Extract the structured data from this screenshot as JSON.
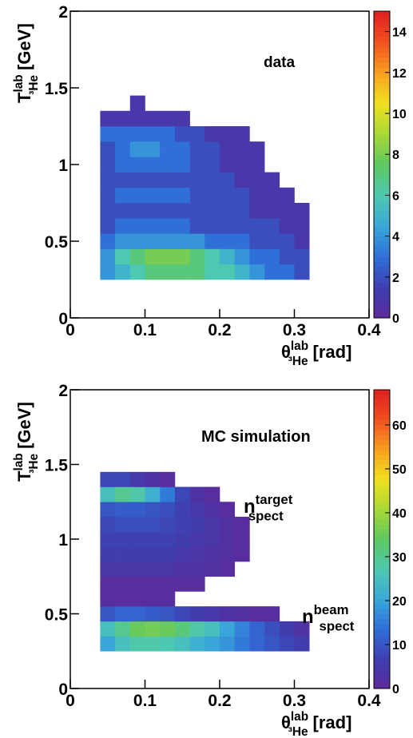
{
  "chart_data": [
    {
      "type": "heatmap",
      "title": "data",
      "xlabel": {
        "main": "θ",
        "sup": "lab",
        "sub": "³He",
        "unit": "[rad]"
      },
      "ylabel": {
        "main": "T",
        "sup": "lab",
        "sub": "³He",
        "unit": "[GeV]"
      },
      "xlim": [
        0,
        0.4
      ],
      "ylim": [
        0,
        2
      ],
      "xticks": [
        0,
        0.1,
        0.2,
        0.3,
        0.4
      ],
      "yticks": [
        0,
        0.5,
        1,
        1.5,
        2
      ],
      "zlim": [
        0,
        15
      ],
      "zticks": [
        0,
        2,
        4,
        6,
        8,
        10,
        12,
        14
      ],
      "palette": [
        "#5c2a9a",
        "#3f3fb0",
        "#2f6fd8",
        "#3aa8d8",
        "#4ec8b0",
        "#5ec860",
        "#a8d838",
        "#f0e020",
        "#f8a020",
        "#f05020",
        "#e02020"
      ],
      "xbins": [
        0.04,
        0.06,
        0.08,
        0.1,
        0.12,
        0.14,
        0.16,
        0.18,
        0.2,
        0.22,
        0.24,
        0.26,
        0.28,
        0.3,
        0.32
      ],
      "ybins": [
        0.25,
        0.35,
        0.45,
        0.55,
        0.65,
        0.75,
        0.85,
        0.95,
        1.05,
        1.15,
        1.25,
        1.35,
        1.45
      ],
      "z": [
        [
          4,
          5,
          6,
          7,
          7,
          7,
          7,
          6,
          6,
          5,
          4,
          3,
          3,
          2
        ],
        [
          4,
          6,
          7,
          8,
          8,
          8,
          7,
          6,
          5,
          4,
          3,
          3,
          2,
          2
        ],
        [
          3,
          4,
          4,
          4,
          4,
          4,
          4,
          3,
          3,
          3,
          2,
          2,
          2,
          1
        ],
        [
          2,
          3,
          3,
          3,
          3,
          3,
          2,
          2,
          2,
          2,
          2,
          2,
          1,
          1
        ],
        [
          2,
          2,
          2,
          2,
          2,
          2,
          2,
          2,
          2,
          2,
          1,
          1,
          1,
          1
        ],
        [
          2,
          3,
          3,
          3,
          3,
          3,
          2,
          2,
          2,
          2,
          1,
          1,
          1,
          0
        ],
        [
          2,
          2,
          2,
          2,
          2,
          2,
          2,
          2,
          2,
          1,
          1,
          1,
          0,
          0
        ],
        [
          2,
          3,
          3,
          3,
          3,
          3,
          2,
          2,
          1,
          1,
          1,
          0,
          0,
          0
        ],
        [
          2,
          3,
          4,
          4,
          3,
          3,
          2,
          2,
          1,
          1,
          1,
          0,
          0,
          0
        ],
        [
          3,
          3,
          3,
          3,
          3,
          2,
          2,
          1,
          1,
          1,
          0,
          0,
          0,
          0
        ],
        [
          1,
          1,
          1,
          1,
          1,
          1,
          0,
          0,
          0,
          0,
          0,
          0,
          0,
          0
        ],
        [
          0,
          0,
          1,
          0,
          0,
          0,
          0,
          0,
          0,
          0,
          0,
          0,
          0,
          0
        ]
      ],
      "annotations": []
    },
    {
      "type": "heatmap",
      "title": "MC simulation",
      "xlabel": {
        "main": "θ",
        "sup": "lab",
        "sub": "³He",
        "unit": "[rad]"
      },
      "ylabel": {
        "main": "T",
        "sup": "lab",
        "sub": "³He",
        "unit": "[GeV]"
      },
      "xlim": [
        0,
        0.4
      ],
      "ylim": [
        0,
        2
      ],
      "xticks": [
        0,
        0.1,
        0.2,
        0.3,
        0.4
      ],
      "yticks": [
        0,
        0.5,
        1,
        1.5,
        2
      ],
      "zlim": [
        0,
        68
      ],
      "zticks": [
        0,
        10,
        20,
        30,
        40,
        50,
        60
      ],
      "palette": [
        "#5c2a9a",
        "#3f3fb0",
        "#2f6fd8",
        "#3aa8d8",
        "#4ec8b0",
        "#5ec860",
        "#a8d838",
        "#f0e020",
        "#f8a020",
        "#f05020",
        "#e02020"
      ],
      "xbins": [
        0.04,
        0.06,
        0.08,
        0.1,
        0.12,
        0.14,
        0.16,
        0.18,
        0.2,
        0.22,
        0.24,
        0.26,
        0.28,
        0.3,
        0.32
      ],
      "ybins": [
        0.25,
        0.35,
        0.45,
        0.55,
        0.65,
        0.75,
        0.85,
        0.95,
        1.05,
        1.15,
        1.25,
        1.35,
        1.45
      ],
      "z": [
        [
          20,
          25,
          28,
          28,
          27,
          25,
          22,
          20,
          18,
          15,
          12,
          10,
          8,
          6
        ],
        [
          25,
          30,
          35,
          36,
          35,
          32,
          28,
          25,
          20,
          16,
          12,
          9,
          6,
          3
        ],
        [
          10,
          12,
          12,
          11,
          10,
          8,
          6,
          5,
          3,
          2,
          1,
          1,
          0,
          0
        ],
        [
          1,
          1,
          1,
          1,
          1,
          0,
          0,
          0,
          0,
          0,
          0,
          0,
          0,
          0
        ],
        [
          1,
          1,
          1,
          1,
          1,
          1,
          1,
          0,
          0,
          0,
          0,
          0,
          0,
          0
        ],
        [
          4,
          4,
          4,
          4,
          4,
          3,
          3,
          2,
          1,
          0,
          0,
          0,
          0,
          0
        ],
        [
          6,
          6,
          6,
          6,
          6,
          5,
          4,
          3,
          2,
          1,
          0,
          0,
          0,
          0
        ],
        [
          7,
          7,
          7,
          7,
          7,
          6,
          5,
          4,
          2,
          1,
          0,
          0,
          0,
          0
        ],
        [
          8,
          9,
          9,
          9,
          8,
          7,
          6,
          4,
          2,
          1,
          0,
          0,
          0,
          0
        ],
        [
          10,
          11,
          11,
          10,
          9,
          7,
          5,
          3,
          1,
          0,
          0,
          0,
          0,
          0
        ],
        [
          25,
          30,
          28,
          22,
          15,
          8,
          3,
          1,
          0,
          0,
          0,
          0,
          0,
          0
        ],
        [
          8,
          8,
          5,
          3,
          1,
          0,
          0,
          0,
          0,
          0,
          0,
          0,
          0,
          0
        ]
      ],
      "annotations": [
        {
          "main": "n",
          "sup": "target",
          "sub": "spect"
        },
        {
          "main": "n",
          "sup": "beam",
          "sub": "spect"
        }
      ]
    }
  ]
}
